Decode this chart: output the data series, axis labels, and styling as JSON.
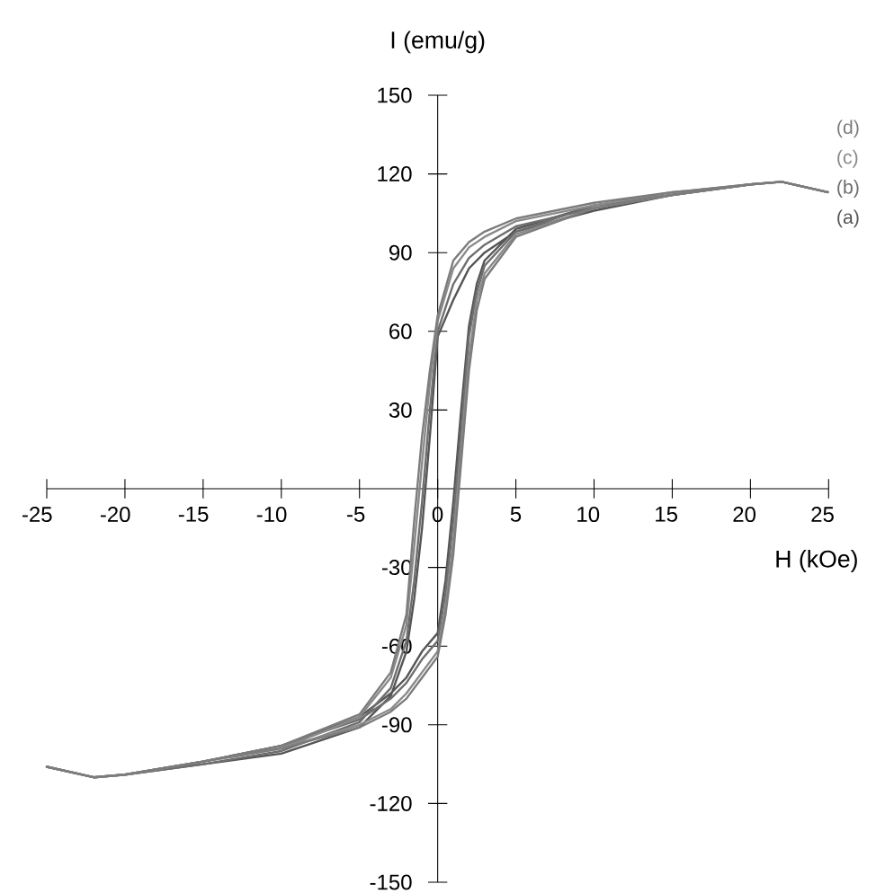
{
  "chart_data": {
    "type": "line",
    "xlabel": "H (kOe)",
    "ylabel": "I (emu/g)",
    "xlim": [
      -25,
      25
    ],
    "ylim": [
      -150,
      150
    ],
    "xticks": [
      -25,
      -20,
      -15,
      -10,
      -5,
      0,
      5,
      10,
      15,
      20,
      25
    ],
    "yticks": [
      -150,
      -120,
      -90,
      -60,
      -30,
      30,
      60,
      90,
      120,
      150
    ],
    "series": [
      {
        "name": "(a)",
        "color": "#555555",
        "x": [
          25,
          22,
          20,
          15,
          10,
          5,
          3,
          2,
          1,
          0,
          -0.5,
          -1,
          -1.5,
          -2,
          -3,
          -5,
          -10,
          -15,
          -20,
          -22,
          -25,
          -22,
          -20,
          -15,
          -10,
          -5,
          -3,
          -2,
          -1,
          0,
          0.5,
          1,
          1.5,
          2,
          2.5,
          3,
          5,
          10,
          15,
          20,
          22
        ],
        "values": [
          113,
          117,
          116,
          112,
          106,
          98,
          90,
          84,
          72,
          58,
          20,
          -15,
          -42,
          -62,
          -79,
          -91,
          -101,
          -105,
          -109,
          -110,
          -106,
          -110,
          -109,
          -104,
          -98,
          -87,
          -78,
          -72,
          -62,
          -55,
          -35,
          -5,
          30,
          62,
          78,
          87,
          99,
          108,
          112,
          116,
          117
        ]
      },
      {
        "name": "(b)",
        "color": "#6e6e6e",
        "x": [
          25,
          22,
          20,
          15,
          10,
          5,
          3,
          2,
          1,
          0,
          -0.5,
          -1,
          -1.5,
          -2,
          -3,
          -5,
          -10,
          -15,
          -20,
          -22,
          -25,
          -22,
          -20,
          -15,
          -10,
          -5,
          -3,
          -2,
          -1,
          0,
          0.5,
          1,
          1.5,
          2,
          2.5,
          3,
          5,
          10,
          15,
          20,
          22
        ],
        "values": [
          113,
          117,
          116,
          112,
          107,
          100,
          93,
          88,
          78,
          60,
          30,
          -5,
          -35,
          -58,
          -76,
          -89,
          -100,
          -105,
          -109,
          -110,
          -106,
          -110,
          -109,
          -104,
          -98,
          -88,
          -80,
          -74,
          -65,
          -58,
          -40,
          -12,
          22,
          58,
          75,
          85,
          98,
          108,
          112,
          116,
          117
        ]
      },
      {
        "name": "(c)",
        "color": "#8a8a8a",
        "x": [
          25,
          22,
          20,
          15,
          10,
          5,
          3,
          2,
          1,
          0,
          -0.5,
          -1,
          -1.5,
          -2,
          -3,
          -5,
          -10,
          -15,
          -20,
          -22,
          -25,
          -22,
          -20,
          -15,
          -10,
          -5,
          -3,
          -2,
          -1,
          0,
          0.5,
          1,
          1.5,
          2,
          2.5,
          3,
          5,
          10,
          15,
          20,
          22
        ],
        "values": [
          113,
          117,
          116,
          113,
          108,
          102,
          96,
          92,
          84,
          64,
          40,
          10,
          -22,
          -52,
          -72,
          -87,
          -99,
          -104,
          -109,
          -110,
          -106,
          -110,
          -109,
          -104,
          -99,
          -90,
          -84,
          -78,
          -70,
          -62,
          -45,
          -20,
          15,
          50,
          72,
          82,
          97,
          107,
          112,
          116,
          117
        ]
      },
      {
        "name": "(d)",
        "color": "#7c7c7c",
        "x": [
          25,
          22,
          20,
          15,
          10,
          5,
          3,
          2,
          1,
          0,
          -0.5,
          -1,
          -1.5,
          -2,
          -3,
          -5,
          -10,
          -15,
          -20,
          -22,
          -25,
          -22,
          -20,
          -15,
          -10,
          -5,
          -3,
          -2,
          -1,
          0,
          0.5,
          1,
          1.5,
          2,
          2.5,
          3,
          5,
          10,
          15,
          20,
          22
        ],
        "values": [
          113,
          117,
          116,
          113,
          109,
          103,
          98,
          94,
          87,
          66,
          45,
          20,
          -12,
          -48,
          -70,
          -86,
          -98,
          -104,
          -109,
          -110,
          -106,
          -110,
          -109,
          -104,
          -99,
          -91,
          -85,
          -80,
          -72,
          -64,
          -48,
          -25,
          10,
          45,
          68,
          80,
          96,
          107,
          112,
          116,
          117
        ]
      }
    ]
  }
}
